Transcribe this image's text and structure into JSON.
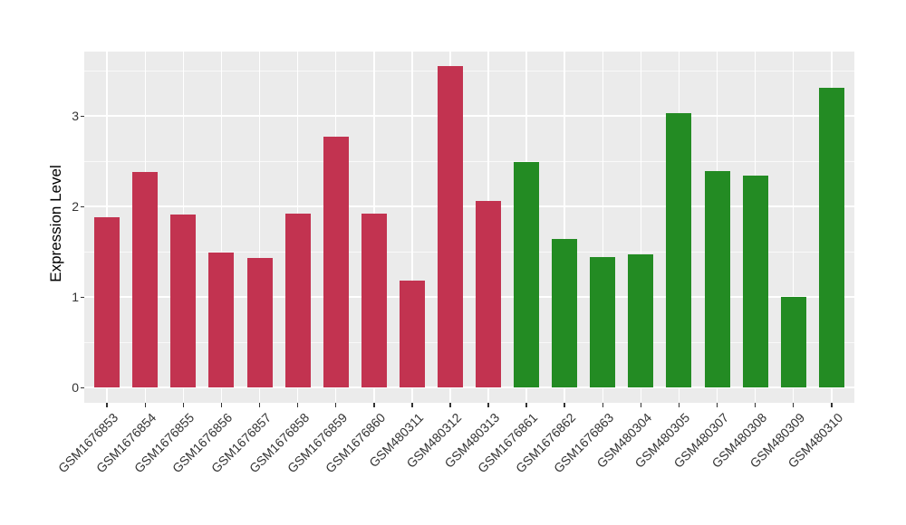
{
  "chart_data": {
    "type": "bar",
    "title": "",
    "xlabel": "",
    "ylabel": "Expression Level",
    "categories": [
      "GSM1676853",
      "GSM1676854",
      "GSM1676855",
      "GSM1676856",
      "GSM1676857",
      "GSM1676858",
      "GSM1676859",
      "GSM1676860",
      "GSM480311",
      "GSM480312",
      "GSM480313",
      "GSM1676861",
      "GSM1676862",
      "GSM1676863",
      "GSM480304",
      "GSM480305",
      "GSM480307",
      "GSM480308",
      "GSM480309",
      "GSM480310"
    ],
    "values": [
      1.88,
      2.38,
      1.91,
      1.49,
      1.43,
      1.92,
      2.77,
      1.92,
      1.18,
      3.55,
      2.06,
      2.49,
      1.64,
      1.44,
      1.47,
      3.03,
      2.39,
      2.34,
      1.0,
      3.31
    ],
    "groups": [
      "group1",
      "group1",
      "group1",
      "group1",
      "group1",
      "group1",
      "group1",
      "group1",
      "group1",
      "group1",
      "group1",
      "group2",
      "group2",
      "group2",
      "group2",
      "group2",
      "group2",
      "group2",
      "group2",
      "group2"
    ],
    "group_colors": {
      "group1": "#C23350",
      "group2": "#238B23"
    },
    "yticks": [
      0,
      1,
      2,
      3
    ],
    "yticks_minor": [
      0.5,
      1.5,
      2.5,
      3.5
    ],
    "ylim": [
      -0.17,
      3.72
    ],
    "grid": "on",
    "legend": "none",
    "colors": {
      "panel_background": "#EBEBEB",
      "gridline": "#FFFFFF",
      "tick": "#333333",
      "tick_label": "#333333",
      "axis_title": "#000000",
      "figure_background": "#FFFFFF"
    }
  }
}
